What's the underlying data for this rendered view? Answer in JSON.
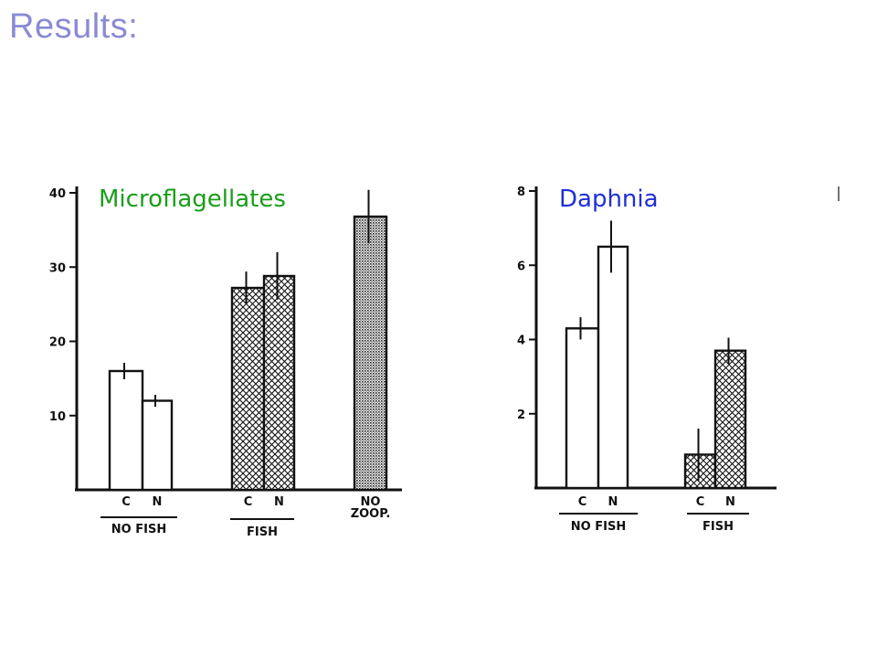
{
  "slide": {
    "title": "Results:"
  },
  "colors": {
    "title": "#8a8ad6",
    "panel_label_green": "#1a9e1a",
    "panel_label_blue": "#1f2fd6",
    "ink": "#111111"
  },
  "chart_data": [
    {
      "type": "bar",
      "title": "Microflagellates",
      "title_color": "#1a9e1a",
      "ylim": [
        0,
        40
      ],
      "yticks": [
        10,
        20,
        30,
        40
      ],
      "bars": [
        {
          "label": "C",
          "group": "NO FISH",
          "value": 16,
          "err": 1.1,
          "pattern": "open"
        },
        {
          "label": "N",
          "group": "NO FISH",
          "value": 12,
          "err": 0.8,
          "pattern": "open"
        },
        {
          "label": "C",
          "group": "FISH",
          "value": 27.2,
          "err": 2.2,
          "pattern": "crosshatch"
        },
        {
          "label": "N",
          "group": "FISH",
          "value": 28.8,
          "err": 3.2,
          "pattern": "crosshatch"
        },
        {
          "label": "NO",
          "label2": "ZOOP.",
          "group": "",
          "value": 36.8,
          "err": 3.6,
          "pattern": "stipple"
        }
      ],
      "groups": [
        "NO FISH",
        "FISH"
      ]
    },
    {
      "type": "bar",
      "title": "Daphnia",
      "title_color": "#1f2fd6",
      "ylim": [
        0,
        8
      ],
      "yticks": [
        2,
        4,
        6,
        8
      ],
      "bars": [
        {
          "label": "C",
          "group": "NO FISH",
          "value": 4.3,
          "err": 0.3,
          "pattern": "open"
        },
        {
          "label": "N",
          "group": "NO FISH",
          "value": 6.5,
          "err": 0.7,
          "pattern": "open"
        },
        {
          "label": "C",
          "group": "FISH",
          "value": 0.9,
          "err": 0.7,
          "pattern": "crosshatch"
        },
        {
          "label": "N",
          "group": "FISH",
          "value": 3.7,
          "err": 0.35,
          "pattern": "crosshatch"
        }
      ],
      "groups": [
        "NO FISH",
        "FISH"
      ]
    }
  ]
}
